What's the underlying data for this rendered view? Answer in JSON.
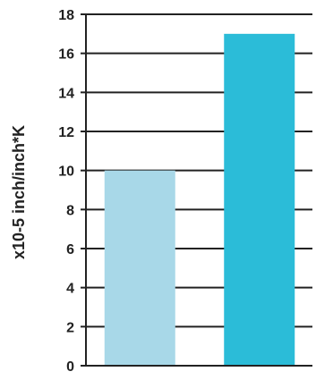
{
  "chart_data": {
    "type": "bar",
    "title": "",
    "xlabel": "",
    "ylabel": "x10-5 inch/inch*K",
    "ylim": [
      0,
      18
    ],
    "yticks": [
      0,
      2,
      4,
      6,
      8,
      10,
      12,
      14,
      16,
      18
    ],
    "grid": true,
    "categories": [
      "",
      ""
    ],
    "values": [
      10,
      17
    ],
    "colors": [
      "#a8d8e8",
      "#2bbcd8"
    ]
  }
}
